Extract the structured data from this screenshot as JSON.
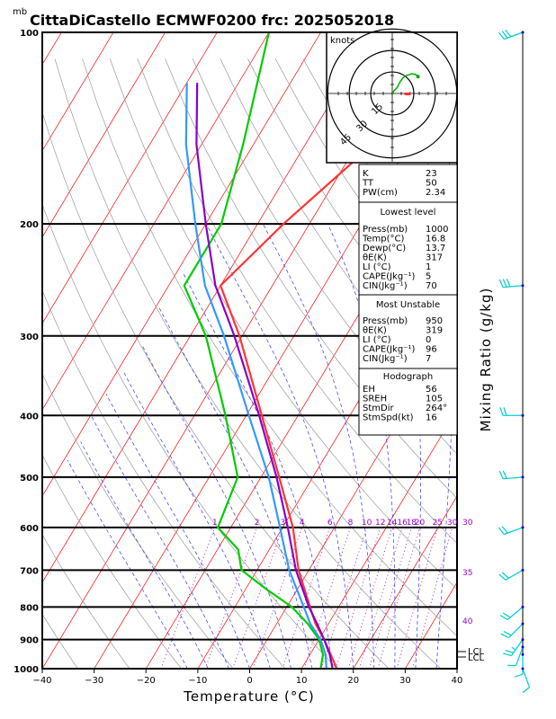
{
  "header": {
    "mb_label": "mb",
    "title": "CittaDiCastello ECMWF0200 frc: 2025052018"
  },
  "axes": {
    "xlabel": "Temperature (°C)",
    "right_label": "Mixing Ratio (g/kg)",
    "x_ticks": [
      "−40",
      "−30",
      "−20",
      "−10",
      "0",
      "10",
      "20",
      "30",
      "40"
    ],
    "x_values": [
      -40,
      -30,
      -20,
      -10,
      0,
      10,
      20,
      30,
      40
    ],
    "p_ticks": [
      "100",
      "200",
      "300",
      "400",
      "500",
      "600",
      "700",
      "800",
      "900",
      "1000"
    ],
    "p_values": [
      100,
      200,
      300,
      400,
      500,
      600,
      700,
      800,
      900,
      1000
    ],
    "lcl_labels": [
      "LCL",
      "LCL"
    ]
  },
  "mixing_ratio_labels": [
    "1",
    "2",
    "3",
    "4",
    "6",
    "8",
    "10",
    "12",
    "14",
    "16",
    "18",
    "20",
    "25",
    "30"
  ],
  "mixing_ratio_values": [
    1,
    2,
    3,
    4,
    6,
    8,
    10,
    12,
    14,
    16,
    18,
    20,
    25,
    30
  ],
  "theta_e_labels": [
    "30",
    "35",
    "40"
  ],
  "hodograph": {
    "units": "knots",
    "ring_labels": [
      "15",
      "30",
      "45"
    ]
  },
  "indices": {
    "rows": [
      {
        "k": "K",
        "v": "23"
      },
      {
        "k": "TT",
        "v": "50"
      },
      {
        "k": "PW(cm)",
        "v": "2.34"
      }
    ]
  },
  "lowest": {
    "title": "Lowest level",
    "rows": [
      {
        "k": "Press(mb)",
        "v": "1000"
      },
      {
        "k": "Temp(°C)",
        "v": "16.8"
      },
      {
        "k": "Dewp(°C)",
        "v": "13.7"
      },
      {
        "k": "θE(K)",
        "v": "317"
      },
      {
        "k": "LI (°C)",
        "v": "1"
      },
      {
        "k": "CAPE(Jkg⁻¹)",
        "v": "5"
      },
      {
        "k": "CIN(Jkg⁻¹)",
        "v": "70"
      }
    ]
  },
  "unstable": {
    "title": "Most Unstable",
    "rows": [
      {
        "k": "Press(mb)",
        "v": "950"
      },
      {
        "k": "θE(K)",
        "v": "319"
      },
      {
        "k": "LI (°C)",
        "v": "0"
      },
      {
        "k": "CAPE(Jkg⁻¹)",
        "v": "96"
      },
      {
        "k": "CIN(Jkg⁻¹)",
        "v": "7"
      }
    ]
  },
  "hodo_table": {
    "title": "Hodograph",
    "rows": [
      {
        "k": "EH",
        "v": "56"
      },
      {
        "k": "SREH",
        "v": "105"
      },
      {
        "k": "StmDir",
        "v": "264°"
      },
      {
        "k": "StmSpd(kt)",
        "v": "16"
      }
    ]
  },
  "colors": {
    "temperature": "#ff3333",
    "dewpoint": "#00cc00",
    "wetbulb": "#3399ff",
    "parcel": "#8800cc",
    "isotherm": "#ff0000",
    "dry_adiabat": "#999999",
    "moist_adiabat": "#3333ff",
    "mixing_ratio": "#990099",
    "wind_barb": "#00cccc"
  },
  "chart_data": {
    "type": "line",
    "title": "CittaDiCastello ECMWF0200 frc: 2025052018",
    "xlabel": "Temperature (°C)",
    "ylabel": "mb",
    "xlim": [
      -40,
      40
    ],
    "ylim": [
      1000,
      100
    ],
    "y_scale": "log",
    "series": [
      {
        "key": "temp",
        "p": [
          1000,
          950,
          900,
          850,
          800,
          700,
          600,
          500,
          400,
          300,
          250,
          200,
          150,
          100
        ],
        "t": [
          16.8,
          14.0,
          11.0,
          7.5,
          4.5,
          -2.0,
          -8.0,
          -16.5,
          -27.0,
          -40.5,
          -50.0,
          -45.0,
          -37.0,
          -26.0
        ]
      },
      {
        "key": "dewp",
        "p": [
          1000,
          950,
          900,
          850,
          800,
          750,
          700,
          650,
          600,
          500,
          400,
          300,
          250,
          200,
          150,
          100
        ],
        "t": [
          13.7,
          12.5,
          10.0,
          6.0,
          1.0,
          -6.0,
          -13.0,
          -16.0,
          -22.5,
          -24.5,
          -34.0,
          -47.0,
          -57.0,
          -57.0,
          -62.0,
          -70.0
        ]
      },
      {
        "key": "wetbulb",
        "p": [
          1000,
          950,
          900,
          850,
          800,
          700,
          600,
          500,
          400,
          300,
          250,
          200,
          150,
          120
        ],
        "t": [
          14.8,
          13.0,
          10.3,
          6.5,
          3.3,
          -3.8,
          -10.5,
          -18.5,
          -29.5,
          -43.5,
          -53.0,
          -62.0,
          -73.0,
          -80.0
        ]
      },
      {
        "key": "parcel",
        "p": [
          1000,
          950,
          900,
          850,
          800,
          700,
          600,
          500,
          400,
          300,
          250,
          200,
          150,
          120
        ],
        "t": [
          16.0,
          13.8,
          11.0,
          7.8,
          4.3,
          -2.5,
          -9.0,
          -17.0,
          -27.5,
          -41.5,
          -51.0,
          -60.0,
          -71.0,
          -78.0
        ]
      }
    ],
    "winds": [
      {
        "p": 100,
        "dir": 250,
        "spd": 30
      },
      {
        "p": 250,
        "dir": 265,
        "spd": 30
      },
      {
        "p": 400,
        "dir": 270,
        "spd": 20
      },
      {
        "p": 500,
        "dir": 265,
        "spd": 20
      },
      {
        "p": 600,
        "dir": 250,
        "spd": 20
      },
      {
        "p": 700,
        "dir": 240,
        "spd": 20
      },
      {
        "p": 800,
        "dir": 230,
        "spd": 20
      },
      {
        "p": 850,
        "dir": 225,
        "spd": 20
      },
      {
        "p": 900,
        "dir": 215,
        "spd": 15
      },
      {
        "p": 925,
        "dir": 200,
        "spd": 10
      },
      {
        "p": 950,
        "dir": 180,
        "spd": 10
      },
      {
        "p": 1000,
        "dir": 160,
        "spd": 10
      }
    ],
    "hodograph_trace": {
      "u": [
        0,
        2,
        5,
        8,
        11,
        14,
        17,
        20,
        24,
        26
      ],
      "v": [
        0,
        3,
        6,
        12,
        16,
        18,
        19,
        20,
        19,
        17
      ]
    },
    "storm_motion": {
      "dir": 264,
      "spd": 16
    }
  }
}
